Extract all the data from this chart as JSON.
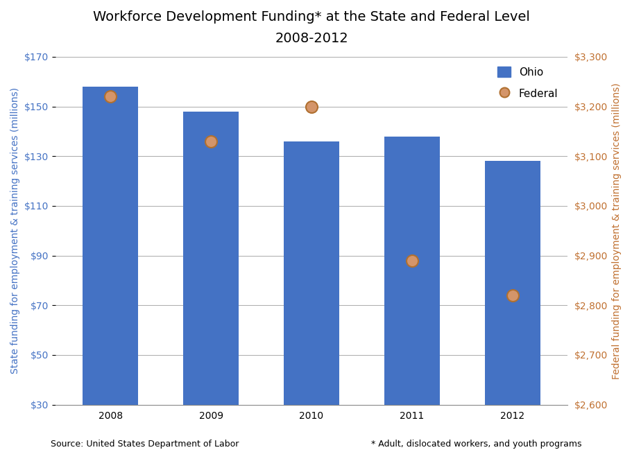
{
  "title_line1": "Workforce Development Funding* at the State and Federal Level",
  "title_line2": "2008-2012",
  "years": [
    2008,
    2009,
    2010,
    2011,
    2012
  ],
  "ohio_values": [
    158,
    148,
    136,
    138,
    128
  ],
  "federal_values": [
    3220,
    3130,
    3200,
    2890,
    2820
  ],
  "bar_color": "#4472C4",
  "dot_facecolor": "#D4956A",
  "dot_edgecolor": "#B07030",
  "left_ylabel": "State funding for employment & training services (millions)",
  "right_ylabel": "Federal funding for employment & training services (millions)",
  "left_ylim": [
    30,
    170
  ],
  "right_ylim": [
    2600,
    3300
  ],
  "left_yticks": [
    30,
    50,
    70,
    90,
    110,
    130,
    150,
    170
  ],
  "right_yticks": [
    2600,
    2700,
    2800,
    2900,
    3000,
    3100,
    3200,
    3300
  ],
  "left_ycolor": "#4472C4",
  "right_ycolor": "#C07030",
  "source_text": "Source: United States Department of Labor",
  "footnote_text": "* Adult, dislocated workers, and youth programs",
  "legend_ohio_label": "Ohio",
  "legend_federal_label": "Federal",
  "background_color": "#FFFFFF",
  "grid_color": "#AAAAAA",
  "title_fontsize": 14,
  "subtitle_fontsize": 11,
  "label_fontsize": 10,
  "tick_fontsize": 10,
  "source_fontsize": 9,
  "bar_width": 0.55,
  "dot_size": 150,
  "dot_linewidth": 1.5,
  "bar_bottom": 30
}
